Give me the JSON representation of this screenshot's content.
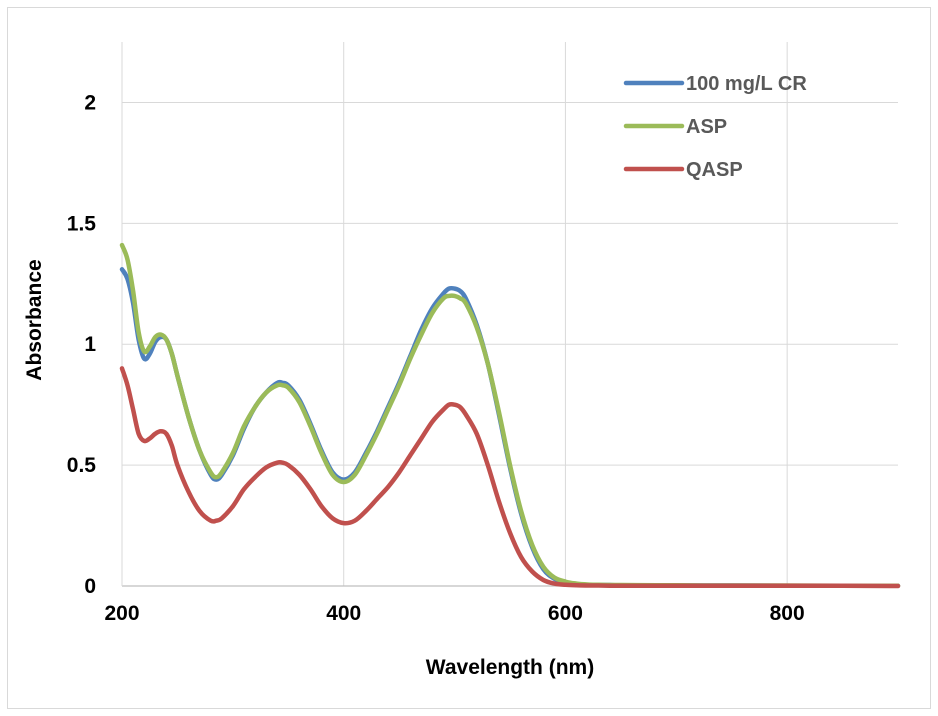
{
  "chart_data": {
    "type": "line",
    "title": "",
    "xlabel": "Wavelength (nm)",
    "ylabel": "Absorbance",
    "xlim": [
      200,
      900
    ],
    "ylim": [
      0,
      2.25
    ],
    "xticks": [
      200,
      400,
      600,
      800
    ],
    "yticks": [
      0,
      0.5,
      1,
      1.5,
      2
    ],
    "xtick_labels": [
      "200",
      "400",
      "600",
      "800"
    ],
    "ytick_labels": [
      "0",
      "0.5",
      "1",
      "1.5",
      "2"
    ],
    "grid": true,
    "legend_position": "top-right",
    "series": [
      {
        "name": "100 mg/L CR",
        "color": "#4F81BD",
        "x": [
          200,
          205,
          210,
          215,
          220,
          225,
          230,
          235,
          240,
          245,
          250,
          260,
          270,
          280,
          285,
          290,
          300,
          310,
          320,
          330,
          340,
          345,
          350,
          360,
          370,
          380,
          390,
          400,
          410,
          420,
          430,
          440,
          450,
          460,
          470,
          480,
          490,
          495,
          500,
          505,
          510,
          520,
          530,
          540,
          550,
          560,
          570,
          580,
          590,
          600,
          610,
          620,
          630,
          640,
          650,
          700,
          750,
          800,
          850,
          900
        ],
        "y": [
          1.31,
          1.27,
          1.17,
          1.02,
          0.94,
          0.96,
          1.01,
          1.03,
          1.02,
          0.96,
          0.87,
          0.7,
          0.56,
          0.46,
          0.44,
          0.46,
          0.54,
          0.65,
          0.74,
          0.8,
          0.84,
          0.84,
          0.83,
          0.77,
          0.67,
          0.56,
          0.47,
          0.44,
          0.47,
          0.55,
          0.64,
          0.74,
          0.84,
          0.95,
          1.06,
          1.15,
          1.21,
          1.23,
          1.23,
          1.22,
          1.19,
          1.08,
          0.92,
          0.71,
          0.49,
          0.3,
          0.16,
          0.07,
          0.03,
          0.015,
          0.008,
          0.005,
          0.004,
          0.004,
          0.003,
          0.002,
          0.002,
          0.001,
          0.001,
          0.001
        ]
      },
      {
        "name": "ASP",
        "color": "#9BBB59",
        "x": [
          200,
          205,
          210,
          215,
          220,
          225,
          230,
          235,
          240,
          245,
          250,
          260,
          270,
          280,
          285,
          290,
          300,
          310,
          320,
          330,
          340,
          345,
          350,
          360,
          370,
          380,
          390,
          400,
          410,
          420,
          430,
          440,
          450,
          460,
          470,
          480,
          490,
          495,
          500,
          505,
          510,
          520,
          530,
          540,
          550,
          560,
          570,
          580,
          590,
          600,
          610,
          620,
          630,
          640,
          650,
          700,
          750,
          800,
          850,
          900
        ],
        "y": [
          1.41,
          1.35,
          1.22,
          1.05,
          0.97,
          0.99,
          1.03,
          1.04,
          1.02,
          0.96,
          0.87,
          0.7,
          0.56,
          0.47,
          0.45,
          0.47,
          0.55,
          0.66,
          0.74,
          0.8,
          0.83,
          0.83,
          0.82,
          0.76,
          0.66,
          0.55,
          0.46,
          0.43,
          0.46,
          0.54,
          0.63,
          0.73,
          0.83,
          0.94,
          1.04,
          1.13,
          1.19,
          1.2,
          1.2,
          1.19,
          1.17,
          1.07,
          0.92,
          0.72,
          0.5,
          0.31,
          0.17,
          0.08,
          0.035,
          0.018,
          0.01,
          0.006,
          0.005,
          0.004,
          0.004,
          0.003,
          0.002,
          0.002,
          0.001,
          0.001
        ]
      },
      {
        "name": "QASP",
        "color": "#C0504D",
        "x": [
          200,
          205,
          210,
          215,
          220,
          225,
          230,
          235,
          240,
          245,
          250,
          260,
          270,
          280,
          285,
          290,
          300,
          310,
          320,
          330,
          340,
          345,
          350,
          360,
          370,
          380,
          390,
          400,
          410,
          420,
          430,
          440,
          450,
          460,
          470,
          480,
          490,
          495,
          500,
          505,
          510,
          520,
          530,
          540,
          550,
          560,
          570,
          580,
          590,
          600,
          610,
          620,
          630,
          640,
          650,
          700,
          750,
          800,
          850,
          900
        ],
        "y": [
          0.9,
          0.83,
          0.73,
          0.63,
          0.6,
          0.61,
          0.63,
          0.64,
          0.63,
          0.58,
          0.5,
          0.39,
          0.31,
          0.27,
          0.27,
          0.28,
          0.33,
          0.4,
          0.45,
          0.49,
          0.51,
          0.51,
          0.5,
          0.46,
          0.4,
          0.33,
          0.28,
          0.26,
          0.27,
          0.31,
          0.36,
          0.41,
          0.47,
          0.54,
          0.61,
          0.68,
          0.73,
          0.75,
          0.75,
          0.74,
          0.71,
          0.63,
          0.5,
          0.35,
          0.22,
          0.12,
          0.06,
          0.025,
          0.01,
          0.005,
          0.003,
          0.002,
          0.002,
          0.001,
          0.001,
          0.001,
          0.001,
          0.001,
          0.001,
          0.0
        ]
      }
    ]
  }
}
